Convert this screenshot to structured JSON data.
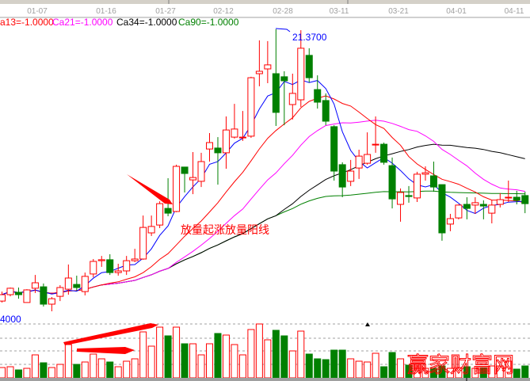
{
  "chart_data": {
    "type": "candlestick",
    "x_tick_labels": [
      "01-07",
      "01-16",
      "01-27",
      "02-12",
      "02-28",
      "03-11",
      "03-21",
      "04-01",
      "04-11"
    ],
    "legend": [
      {
        "label": "a13=-1.0000",
        "color": "#ff0000"
      },
      {
        "label": "Ca21=-1.0000",
        "color": "#ff00ff"
      },
      {
        "label": "Ca34=-1.0000",
        "color": "#000000"
      },
      {
        "label": "Ca90=-1.0000",
        "color": "#008000"
      }
    ],
    "ma_colors": {
      "ma5": "#0000ff",
      "ma13": "#ff0000",
      "ma21": "#ff00ff",
      "ma34": "#000000",
      "ma90": "#008000"
    },
    "up_color": "#ff0000",
    "down_color": "#008000",
    "max_label": "21.3700",
    "annotation": "放量起涨放量阳线",
    "volume_axis_label": "4000",
    "watermark": "赢家财富网",
    "ohlc": [
      [
        9.93,
        10.33,
        9.87,
        10.2
      ],
      [
        10.2,
        10.5,
        10.13,
        10.47
      ],
      [
        10.3,
        10.5,
        10.03,
        10.2
      ],
      [
        9.87,
        10.43,
        9.87,
        10.4
      ],
      [
        10.47,
        11.03,
        10.27,
        10.7
      ],
      [
        10.53,
        10.67,
        9.7,
        9.8
      ],
      [
        9.8,
        10.1,
        9.5,
        10.03
      ],
      [
        10.13,
        10.6,
        9.93,
        10.5
      ],
      [
        10.43,
        11.47,
        10.2,
        10.9
      ],
      [
        10.63,
        11.0,
        10.37,
        10.5
      ],
      [
        10.33,
        11.13,
        10.17,
        10.97
      ],
      [
        11.07,
        11.7,
        10.93,
        11.6
      ],
      [
        11.63,
        11.83,
        11.37,
        11.67
      ],
      [
        11.67,
        11.9,
        11.03,
        11.13
      ],
      [
        11.13,
        11.5,
        11.0,
        11.2
      ],
      [
        11.2,
        11.83,
        11.03,
        11.63
      ],
      [
        11.63,
        12.13,
        11.57,
        11.7
      ],
      [
        11.7,
        13.53,
        11.67,
        13.03
      ],
      [
        12.8,
        13.53,
        12.67,
        13.07
      ],
      [
        13.13,
        14.13,
        13.0,
        14.03
      ],
      [
        13.83,
        15.1,
        13.5,
        13.63
      ],
      [
        13.7,
        15.67,
        13.67,
        15.6
      ],
      [
        15.57,
        15.57,
        14.5,
        15.3
      ],
      [
        15.03,
        16.2,
        14.43,
        15.13
      ],
      [
        14.97,
        16.17,
        14.73,
        15.8
      ],
      [
        16.33,
        17.0,
        15.8,
        16.6
      ],
      [
        16.37,
        16.83,
        14.83,
        16.17
      ],
      [
        16.17,
        17.7,
        15.5,
        17.13
      ],
      [
        16.83,
        18.23,
        16.77,
        17.17
      ],
      [
        16.8,
        17.93,
        16.67,
        16.83
      ],
      [
        16.87,
        19.37,
        16.8,
        19.33
      ],
      [
        19.5,
        20.9,
        18.97,
        19.6
      ],
      [
        19.7,
        20.87,
        19.1,
        19.87
      ],
      [
        19.5,
        21.37,
        17.3,
        17.87
      ],
      [
        19.37,
        19.6,
        17.33,
        19.2
      ],
      [
        18.2,
        19.5,
        17.57,
        18.67
      ],
      [
        18.4,
        21.33,
        18.1,
        20.57
      ],
      [
        20.27,
        20.57,
        19.13,
        19.33
      ],
      [
        18.83,
        19.43,
        18.03,
        18.3
      ],
      [
        18.37,
        18.67,
        17.33,
        17.5
      ],
      [
        17.27,
        17.33,
        15.0,
        15.4
      ],
      [
        15.67,
        15.77,
        14.3,
        14.73
      ],
      [
        14.97,
        15.87,
        14.77,
        15.4
      ],
      [
        15.53,
        16.3,
        15.07,
        16.03
      ],
      [
        15.73,
        17.03,
        15.67,
        16.1
      ],
      [
        16.5,
        17.7,
        16.17,
        16.53
      ],
      [
        16.53,
        16.6,
        15.67,
        15.77
      ],
      [
        15.63,
        15.97,
        13.83,
        14.23
      ],
      [
        14.0,
        14.67,
        13.27,
        14.5
      ],
      [
        14.37,
        14.77,
        14.07,
        14.33
      ],
      [
        14.27,
        15.37,
        14.1,
        15.27
      ],
      [
        15.27,
        15.6,
        15.0,
        15.33
      ],
      [
        15.2,
        15.8,
        14.53,
        14.73
      ],
      [
        14.83,
        14.83,
        12.47,
        12.8
      ],
      [
        13.17,
        13.6,
        12.87,
        13.4
      ],
      [
        13.43,
        14.0,
        13.37,
        13.97
      ],
      [
        14.0,
        14.3,
        13.37,
        13.83
      ],
      [
        13.97,
        14.3,
        13.6,
        14.07
      ],
      [
        14.0,
        14.17,
        13.37,
        13.93
      ],
      [
        13.63,
        14.17,
        13.2,
        13.97
      ],
      [
        14.0,
        14.47,
        13.87,
        14.2
      ],
      [
        14.27,
        15.0,
        14.1,
        14.3
      ],
      [
        14.3,
        14.57,
        14.0,
        14.17
      ],
      [
        14.37,
        14.53,
        13.63,
        14.03
      ]
    ],
    "volume": [
      767,
      826,
      590,
      708,
      1711,
      1121,
      767,
      1003,
      2478,
      1003,
      1180,
      1770,
      1416,
      1180,
      826,
      1239,
      1416,
      3422,
      2360,
      3776,
      3127,
      3776,
      2537,
      2537,
      1711,
      2537,
      3304,
      3186,
      2478,
      1711,
      3599,
      4012,
      2832,
      3540,
      3127,
      2006,
      3481,
      1770,
      1416,
      1357,
      2065,
      2065,
      1416,
      1239,
      1180,
      1829,
      826,
      1888,
      1416,
      944,
      708,
      708,
      708,
      885,
      708,
      767,
      826,
      708,
      767,
      885,
      885,
      1239,
      649,
      885
    ]
  }
}
